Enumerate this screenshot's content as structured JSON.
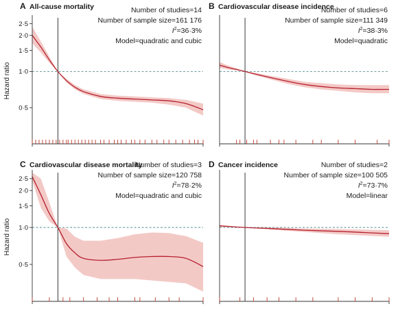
{
  "figure": {
    "colors": {
      "curve": "#b5202e",
      "band": "#f3c9c6",
      "rug": "#c0392b",
      "ref_line": "#5a8f8f",
      "axis": "#333333"
    }
  },
  "chart_data": [
    {
      "panel": "A",
      "type": "line",
      "title": "All-cause mortality",
      "ylabel": "Hazard ratio",
      "yscale": "log",
      "ylim": [
        0.25,
        2.8
      ],
      "yticks": [
        "2·5",
        "2·0",
        "1·5",
        "1·0",
        "0·5"
      ],
      "ytick_values": [
        2.5,
        2.0,
        1.5,
        1.0,
        0.5
      ],
      "xlim": [
        0,
        1
      ],
      "reference_x": 0.15,
      "reference_hr": 1.0,
      "annotations": [
        "Number of studies=14",
        "Number of sample size=161 176",
        "I²=36·3%",
        "Model=quadratic and cubic"
      ],
      "series": [
        {
          "role": "estimate",
          "x": [
            0.0,
            0.05,
            0.1,
            0.15,
            0.2,
            0.25,
            0.3,
            0.4,
            0.5,
            0.6,
            0.7,
            0.8,
            0.9,
            1.0
          ],
          "y": [
            2.0,
            1.6,
            1.25,
            1.0,
            0.84,
            0.74,
            0.68,
            0.62,
            0.6,
            0.59,
            0.58,
            0.57,
            0.54,
            0.48
          ]
        },
        {
          "role": "ci_upper",
          "x": [
            0.0,
            0.05,
            0.1,
            0.15,
            0.2,
            0.25,
            0.3,
            0.4,
            0.5,
            0.6,
            0.7,
            0.8,
            0.9,
            1.0
          ],
          "y": [
            2.35,
            1.78,
            1.33,
            1.0,
            0.87,
            0.77,
            0.71,
            0.65,
            0.63,
            0.62,
            0.61,
            0.6,
            0.58,
            0.54
          ]
        },
        {
          "role": "ci_lower",
          "x": [
            0.0,
            0.05,
            0.1,
            0.15,
            0.2,
            0.25,
            0.3,
            0.4,
            0.5,
            0.6,
            0.7,
            0.8,
            0.9,
            1.0
          ],
          "y": [
            1.72,
            1.44,
            1.18,
            1.0,
            0.81,
            0.71,
            0.65,
            0.59,
            0.57,
            0.56,
            0.55,
            0.53,
            0.5,
            0.43
          ]
        }
      ],
      "rug": [
        0.0,
        0.02,
        0.04,
        0.06,
        0.08,
        0.1,
        0.12,
        0.14,
        0.16,
        0.18,
        0.2,
        0.21,
        0.23,
        0.25,
        0.27,
        0.29,
        0.31,
        0.33,
        0.35,
        0.37,
        0.4,
        0.42,
        0.45,
        0.48,
        0.5,
        0.52,
        0.55,
        0.58,
        0.6,
        0.63,
        0.66,
        0.7,
        0.73,
        0.77,
        0.8,
        0.84,
        0.88,
        0.92,
        0.95,
        0.97,
        1.0
      ]
    },
    {
      "panel": "B",
      "type": "line",
      "title": "Cardiovascular disease incidence",
      "ylabel": "",
      "yscale": "log",
      "ylim": [
        0.25,
        2.8
      ],
      "yticks": [],
      "ytick_values": [],
      "xlim": [
        0,
        1
      ],
      "reference_x": 0.15,
      "reference_hr": 1.0,
      "annotations": [
        "Number of studies=6",
        "Number of sample size=111 349",
        "I²=38·3%",
        "Model=quadratic"
      ],
      "series": [
        {
          "role": "estimate",
          "x": [
            0.0,
            0.05,
            0.1,
            0.15,
            0.2,
            0.3,
            0.4,
            0.5,
            0.6,
            0.7,
            0.8,
            0.9,
            1.0
          ],
          "y": [
            1.13,
            1.08,
            1.04,
            1.0,
            0.96,
            0.89,
            0.83,
            0.78,
            0.75,
            0.73,
            0.72,
            0.71,
            0.71
          ]
        },
        {
          "role": "ci_upper",
          "x": [
            0.0,
            0.05,
            0.1,
            0.15,
            0.2,
            0.3,
            0.4,
            0.5,
            0.6,
            0.7,
            0.8,
            0.9,
            1.0
          ],
          "y": [
            1.2,
            1.12,
            1.06,
            1.0,
            0.98,
            0.92,
            0.87,
            0.82,
            0.8,
            0.78,
            0.77,
            0.77,
            0.77
          ]
        },
        {
          "role": "ci_lower",
          "x": [
            0.0,
            0.05,
            0.1,
            0.15,
            0.2,
            0.3,
            0.4,
            0.5,
            0.6,
            0.7,
            0.8,
            0.9,
            1.0
          ],
          "y": [
            1.07,
            1.04,
            1.02,
            1.0,
            0.94,
            0.86,
            0.79,
            0.74,
            0.71,
            0.69,
            0.67,
            0.66,
            0.66
          ]
        }
      ],
      "rug": [
        0.1,
        0.12,
        0.16,
        0.2,
        0.22,
        0.3,
        0.35,
        0.38,
        0.45,
        0.55,
        0.6,
        0.7,
        0.8,
        0.93,
        1.0
      ]
    },
    {
      "panel": "C",
      "type": "line",
      "title": "Cardiovascular disease mortality",
      "ylabel": "Hazard ratio",
      "yscale": "log",
      "ylim": [
        0.25,
        2.8
      ],
      "yticks": [
        "2·5",
        "2·0",
        "1·5",
        "1·0",
        "0·5"
      ],
      "ytick_values": [
        2.5,
        2.0,
        1.5,
        1.0,
        0.5
      ],
      "xlim": [
        0,
        1
      ],
      "reference_x": 0.15,
      "reference_hr": 1.0,
      "annotations": [
        "Number of studies=3",
        "Number of sample size=120 758",
        "I²=78·2%",
        "Model=quadratic and cubic"
      ],
      "series": [
        {
          "role": "estimate",
          "x": [
            0.0,
            0.05,
            0.1,
            0.15,
            0.2,
            0.25,
            0.3,
            0.4,
            0.5,
            0.6,
            0.7,
            0.8,
            0.9,
            1.0
          ],
          "y": [
            2.6,
            1.85,
            1.3,
            1.0,
            0.74,
            0.62,
            0.56,
            0.54,
            0.55,
            0.57,
            0.58,
            0.58,
            0.56,
            0.48
          ]
        },
        {
          "role": "ci_upper",
          "x": [
            0.0,
            0.05,
            0.1,
            0.15,
            0.2,
            0.25,
            0.3,
            0.4,
            0.5,
            0.6,
            0.7,
            0.8,
            0.9,
            1.0
          ],
          "y": [
            2.8,
            2.5,
            1.6,
            1.0,
            0.98,
            0.84,
            0.78,
            0.78,
            0.82,
            0.88,
            0.91,
            0.9,
            0.85,
            0.75
          ]
        },
        {
          "role": "ci_lower",
          "x": [
            0.0,
            0.05,
            0.1,
            0.15,
            0.2,
            0.25,
            0.3,
            0.4,
            0.5,
            0.6,
            0.7,
            0.8,
            0.9,
            1.0
          ],
          "y": [
            2.4,
            1.45,
            1.12,
            1.0,
            0.58,
            0.47,
            0.41,
            0.38,
            0.38,
            0.38,
            0.37,
            0.36,
            0.35,
            0.3
          ]
        }
      ],
      "rug": [
        0.0,
        0.1,
        0.18,
        0.22,
        0.3,
        0.38,
        0.45,
        0.5,
        0.6,
        0.63,
        0.72,
        0.8,
        0.86,
        1.0
      ]
    },
    {
      "panel": "D",
      "type": "line",
      "title": "Cancer incidence",
      "ylabel": "",
      "yscale": "log",
      "ylim": [
        0.25,
        2.8
      ],
      "yticks": [],
      "ytick_values": [],
      "xlim": [
        0,
        1
      ],
      "reference_x": 0.15,
      "reference_hr": 1.0,
      "annotations": [
        "Number of studies=2",
        "Number of sample size=100 505",
        "I²=73·7%",
        "Model=linear"
      ],
      "series": [
        {
          "role": "estimate",
          "x": [
            0.0,
            0.15,
            0.3,
            0.5,
            0.7,
            0.85,
            1.0
          ],
          "y": [
            1.03,
            1.0,
            0.98,
            0.95,
            0.93,
            0.91,
            0.89
          ]
        },
        {
          "role": "ci_upper",
          "x": [
            0.0,
            0.15,
            0.3,
            0.5,
            0.7,
            0.85,
            1.0
          ],
          "y": [
            1.05,
            1.0,
            1.0,
            0.98,
            0.97,
            0.96,
            0.95
          ]
        },
        {
          "role": "ci_lower",
          "x": [
            0.0,
            0.15,
            0.3,
            0.5,
            0.7,
            0.85,
            1.0
          ],
          "y": [
            1.01,
            1.0,
            0.96,
            0.92,
            0.88,
            0.86,
            0.84
          ]
        }
      ],
      "rug": [
        0.0,
        0.12,
        0.2,
        0.28,
        0.35,
        0.45,
        0.55,
        0.7,
        0.8,
        0.9,
        1.0
      ]
    }
  ]
}
